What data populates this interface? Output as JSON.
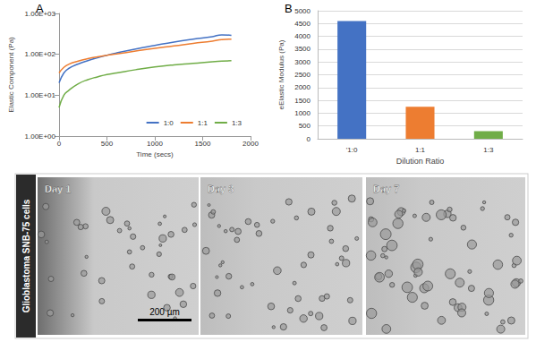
{
  "chart_data": [
    {
      "type": "line",
      "annotations": [
        "A"
      ],
      "x_label": "Time (secs)",
      "y_label": "Elastic Component (Pa)",
      "x": [
        0,
        50,
        100,
        200,
        300,
        400,
        500,
        600,
        800,
        1000,
        1200,
        1400,
        1600,
        1700,
        1800
      ],
      "series": [
        {
          "name": "1:0",
          "color": "#4472c4",
          "values": [
            20,
            35,
            45,
            58,
            70,
            82,
            95,
            108,
            135,
            165,
            200,
            235,
            270,
            300,
            290
          ]
        },
        {
          "name": "1:1",
          "color": "#ed7d31",
          "values": [
            35,
            48,
            57,
            68,
            78,
            87,
            95,
            102,
            120,
            140,
            160,
            185,
            210,
            230,
            235
          ]
        },
        {
          "name": "1:3",
          "color": "#70ad47",
          "values": [
            5,
            10,
            13,
            19,
            24,
            28,
            32,
            35,
            42,
            49,
            55,
            60,
            66,
            68,
            70
          ]
        }
      ],
      "xlim": [
        0,
        2000
      ],
      "xticks": [
        0,
        500,
        1000,
        1500,
        2000
      ],
      "ylim": [
        1,
        1000
      ],
      "yticks": [
        {
          "value": 1,
          "label": "1.00E+00"
        },
        {
          "value": 10,
          "label": "1.00E+01"
        },
        {
          "value": 100,
          "label": "1.00E+02"
        },
        {
          "value": 1000,
          "label": "1.00E+03"
        }
      ],
      "log": "y",
      "grid": false,
      "legend": "lower right"
    },
    {
      "type": "bar",
      "annotations": [
        "B"
      ],
      "x_label": "Dilution Ratio",
      "y_label": "eElastic Modulus (Pa)",
      "categories": [
        "'1:0",
        "1:1",
        "1:3"
      ],
      "values": [
        4600,
        1250,
        300
      ],
      "colors": [
        "#4472c4",
        "#ed7d31",
        "#70ad47"
      ],
      "ylim": [
        0,
        5000
      ],
      "yticks": [
        0,
        500,
        1000,
        1500,
        2000,
        2500,
        3000,
        3500,
        4000,
        4500,
        5000
      ],
      "grid": true
    }
  ],
  "micrographs": {
    "side_label": "Glioblastoma SNB-75 cells",
    "panels": [
      {
        "label": "Day 1",
        "scale_bar": "200 µm"
      },
      {
        "label": "Day 3"
      },
      {
        "label": "Day 7"
      }
    ]
  }
}
